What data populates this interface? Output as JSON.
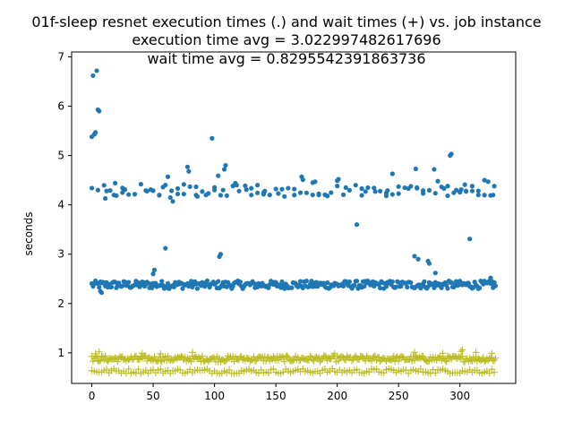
{
  "chart_data": {
    "type": "scatter",
    "title": [
      "01f-sleep resnet execution times (.) and wait times (+) vs. job instance",
      "execution time avg = 3.022997482617696",
      "wait time avg = 0.8295542391863736"
    ],
    "xlabel": "",
    "ylabel": "seconds",
    "xlim": [
      -16.45,
      345.45
    ],
    "ylim": [
      0.38,
      7.1
    ],
    "xticks": [
      0,
      50,
      100,
      150,
      200,
      250,
      300
    ],
    "yticks": [
      1,
      2,
      3,
      4,
      5,
      6,
      7
    ],
    "grid": false,
    "x_count": 330,
    "series": [
      {
        "marker": "dot",
        "color": "#1f77b4",
        "bands": [
          {
            "level": 2.38,
            "spread": 0.08,
            "every": 1
          },
          {
            "level": 4.3,
            "spread": 0.12,
            "every": 5
          }
        ],
        "points": [
          [
            0,
            5.38
          ],
          [
            1,
            6.62
          ],
          [
            2,
            5.43
          ],
          [
            3,
            5.47
          ],
          [
            4,
            6.72
          ],
          [
            5,
            5.93
          ],
          [
            6,
            5.9
          ],
          [
            7,
            2.25
          ],
          [
            8,
            2.22
          ],
          [
            11,
            4.13
          ],
          [
            12,
            4.28
          ],
          [
            18,
            4.2
          ],
          [
            19,
            4.44
          ],
          [
            25,
            4.25
          ],
          [
            27,
            4.31
          ],
          [
            44,
            4.29
          ],
          [
            48,
            4.31
          ],
          [
            50,
            2.6
          ],
          [
            51,
            2.68
          ],
          [
            55,
            4.2
          ],
          [
            58,
            4.36
          ],
          [
            60,
            3.12
          ],
          [
            62,
            4.57
          ],
          [
            64,
            4.15
          ],
          [
            66,
            4.07
          ],
          [
            70,
            4.22
          ],
          [
            75,
            4.22
          ],
          [
            78,
            4.77
          ],
          [
            79,
            4.68
          ],
          [
            85,
            4.2
          ],
          [
            86,
            4.17
          ],
          [
            93,
            4.2
          ],
          [
            98,
            5.35
          ],
          [
            100,
            4.3
          ],
          [
            103,
            4.59
          ],
          [
            104,
            2.95
          ],
          [
            105,
            3.0
          ],
          [
            107,
            4.3
          ],
          [
            108,
            4.72
          ],
          [
            109,
            4.8
          ],
          [
            117,
            4.44
          ],
          [
            118,
            4.4
          ],
          [
            126,
            4.31
          ],
          [
            130,
            4.2
          ],
          [
            135,
            4.4
          ],
          [
            140,
            4.25
          ],
          [
            141,
            4.28
          ],
          [
            152,
            4.23
          ],
          [
            157,
            4.17
          ],
          [
            165,
            4.32
          ],
          [
            171,
            4.57
          ],
          [
            172,
            4.51
          ],
          [
            180,
            4.45
          ],
          [
            182,
            4.47
          ],
          [
            185,
            4.2
          ],
          [
            192,
            4.18
          ],
          [
            200,
            4.49
          ],
          [
            201,
            4.52
          ],
          [
            207,
            4.35
          ],
          [
            216,
            3.6
          ],
          [
            220,
            4.33
          ],
          [
            223,
            4.27
          ],
          [
            231,
            4.27
          ],
          [
            240,
            4.24
          ],
          [
            241,
            4.29
          ],
          [
            245,
            4.63
          ],
          [
            250,
            4.37
          ],
          [
            258,
            4.33
          ],
          [
            263,
            2.96
          ],
          [
            264,
            4.73
          ],
          [
            265,
            4.35
          ],
          [
            266,
            2.9
          ],
          [
            270,
            4.29
          ],
          [
            274,
            2.86
          ],
          [
            275,
            2.81
          ],
          [
            279,
            4.72
          ],
          [
            280,
            2.62
          ],
          [
            282,
            4.48
          ],
          [
            287,
            4.33
          ],
          [
            290,
            4.38
          ],
          [
            292,
            5.0
          ],
          [
            293,
            5.03
          ],
          [
            297,
            4.3
          ],
          [
            301,
            4.31
          ],
          [
            304,
            4.41
          ],
          [
            305,
            4.28
          ],
          [
            308,
            3.31
          ],
          [
            310,
            4.38
          ],
          [
            315,
            4.2
          ],
          [
            320,
            4.5
          ],
          [
            323,
            4.47
          ],
          [
            325,
            2.52
          ],
          [
            326,
            2.45
          ],
          [
            327,
            4.2
          ],
          [
            328,
            4.38
          ]
        ]
      },
      {
        "marker": "plus",
        "color": "#bcbd22",
        "bands": [
          {
            "level": 0.88,
            "spread": 0.06,
            "every": 1
          },
          {
            "level": 0.63,
            "spread": 0.05,
            "every": 2
          }
        ],
        "points": [
          [
            3,
            0.98
          ],
          [
            6,
            1.02
          ],
          [
            41,
            0.99
          ],
          [
            56,
            0.98
          ],
          [
            82,
            1.01
          ],
          [
            198,
            0.98
          ],
          [
            263,
            1.01
          ],
          [
            286,
            0.99
          ],
          [
            301,
            1.03
          ],
          [
            302,
            1.06
          ],
          [
            313,
            1.01
          ],
          [
            326,
            0.99
          ]
        ]
      }
    ]
  }
}
